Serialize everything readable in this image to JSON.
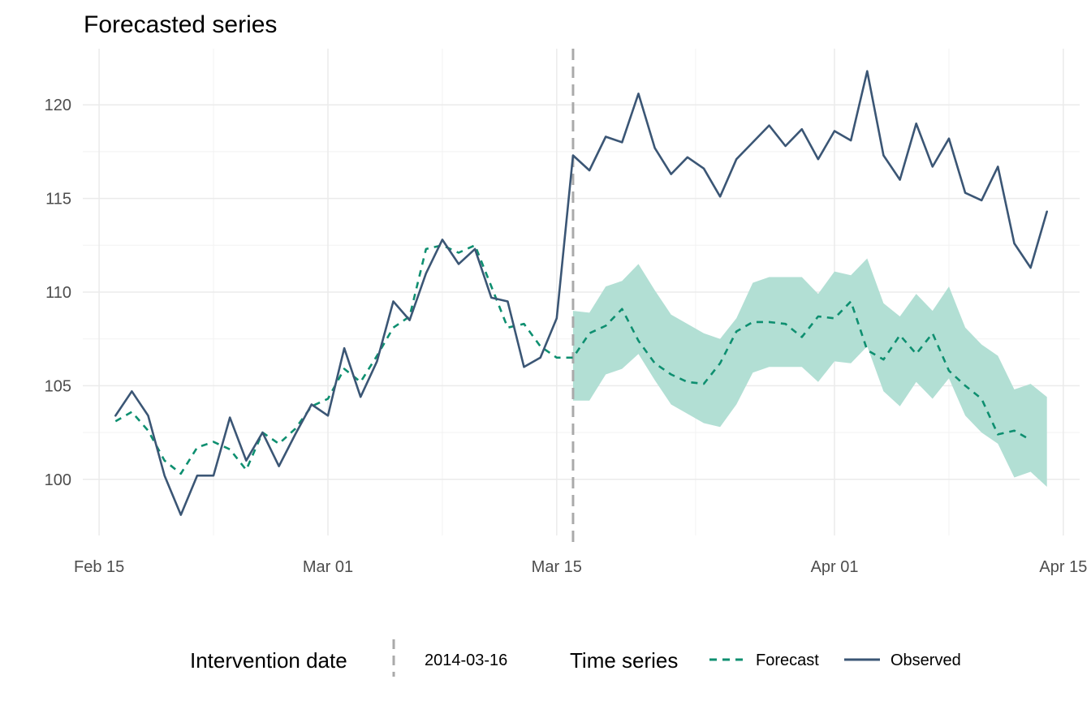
{
  "chart_data": {
    "type": "line",
    "title": "Forecasted series",
    "xlabel": "",
    "ylabel": "",
    "x_range": [
      "2014-02-14",
      "2014-04-16"
    ],
    "ylim": [
      97,
      123
    ],
    "x_ticks": [
      {
        "date": "2014-02-15",
        "label": "Feb 15"
      },
      {
        "date": "2014-03-01",
        "label": "Mar 01"
      },
      {
        "date": "2014-03-15",
        "label": "Mar 15"
      },
      {
        "date": "2014-04-01",
        "label": "Apr 01"
      },
      {
        "date": "2014-04-15",
        "label": "Apr 15"
      }
    ],
    "y_ticks": [
      100,
      105,
      110,
      115,
      120
    ],
    "grid": true,
    "intervention_date": "2014-03-16",
    "x": [
      "2014-02-16",
      "2014-02-17",
      "2014-02-18",
      "2014-02-19",
      "2014-02-20",
      "2014-02-21",
      "2014-02-22",
      "2014-02-23",
      "2014-02-24",
      "2014-02-25",
      "2014-02-26",
      "2014-02-27",
      "2014-02-28",
      "2014-03-01",
      "2014-03-02",
      "2014-03-03",
      "2014-03-04",
      "2014-03-05",
      "2014-03-06",
      "2014-03-07",
      "2014-03-08",
      "2014-03-09",
      "2014-03-10",
      "2014-03-11",
      "2014-03-12",
      "2014-03-13",
      "2014-03-14",
      "2014-03-15",
      "2014-03-16",
      "2014-03-17",
      "2014-03-18",
      "2014-03-19",
      "2014-03-20",
      "2014-03-21",
      "2014-03-22",
      "2014-03-23",
      "2014-03-24",
      "2014-03-25",
      "2014-03-26",
      "2014-03-27",
      "2014-03-28",
      "2014-03-29",
      "2014-03-30",
      "2014-03-31",
      "2014-04-01",
      "2014-04-02",
      "2014-04-03",
      "2014-04-04",
      "2014-04-05",
      "2014-04-06",
      "2014-04-07",
      "2014-04-08",
      "2014-04-09",
      "2014-04-10",
      "2014-04-11",
      "2014-04-12",
      "2014-04-13",
      "2014-04-14"
    ],
    "series": [
      {
        "name": "Forecast",
        "color": "#0e8f70",
        "style": "dashed",
        "values": [
          103.1,
          103.6,
          102.6,
          101.0,
          100.3,
          101.7,
          102.0,
          101.6,
          100.5,
          102.5,
          101.9,
          102.7,
          103.9,
          104.3,
          105.9,
          105.2,
          106.6,
          108.1,
          108.7,
          112.3,
          112.5,
          112.1,
          112.5,
          110.3,
          108.1,
          108.3,
          107.1,
          106.5,
          106.5,
          107.8,
          108.2,
          109.1,
          107.4,
          106.2,
          105.6,
          105.2,
          105.1,
          106.2,
          107.9,
          108.4,
          108.4,
          108.3,
          107.6,
          108.7,
          108.6,
          109.5,
          106.9,
          106.4,
          107.7,
          106.7,
          107.8,
          105.8,
          105.0,
          104.3,
          102.4,
          102.6,
          102.1,
          null
        ]
      },
      {
        "name": "Observed",
        "color": "#3b5675",
        "style": "solid",
        "values": [
          103.4,
          104.7,
          103.4,
          100.2,
          98.1,
          100.2,
          100.2,
          103.3,
          101.0,
          102.5,
          100.7,
          102.4,
          104.0,
          103.4,
          107.0,
          104.4,
          106.3,
          109.5,
          108.5,
          111.0,
          112.8,
          111.5,
          112.3,
          109.7,
          109.5,
          106.0,
          106.5,
          108.6,
          117.3,
          116.5,
          118.3,
          118.0,
          120.6,
          117.7,
          116.3,
          117.2,
          116.6,
          115.1,
          117.1,
          118.0,
          118.9,
          117.8,
          118.7,
          117.1,
          118.6,
          118.1,
          121.8,
          117.3,
          116.0,
          119.0,
          116.7,
          118.2,
          115.3,
          114.9,
          116.7,
          112.6,
          111.3,
          114.3
        ]
      }
    ],
    "interval": {
      "color": "#b2dfd4",
      "start": "2014-03-16",
      "lower": [
        104.2,
        104.2,
        105.6,
        105.9,
        106.7,
        105.3,
        104.0,
        103.5,
        103.0,
        102.8,
        104.0,
        105.7,
        106.0,
        106.0,
        106.0,
        105.2,
        106.3,
        106.2,
        107.1,
        104.7,
        103.9,
        105.2,
        104.3,
        105.4,
        103.4,
        102.5,
        101.9,
        100.1,
        100.4,
        99.6
      ],
      "upper": [
        109.0,
        108.9,
        110.3,
        110.6,
        111.5,
        110.1,
        108.8,
        108.3,
        107.8,
        107.5,
        108.6,
        110.5,
        110.8,
        110.8,
        110.8,
        109.9,
        111.1,
        110.9,
        111.8,
        109.4,
        108.7,
        109.9,
        109.0,
        110.3,
        108.1,
        107.2,
        106.6,
        104.8,
        105.1,
        104.4
      ]
    },
    "legend": {
      "position": "bottom",
      "groups": [
        {
          "title": "Intervention date",
          "entries": [
            "2014-03-16"
          ]
        },
        {
          "title": "Time series",
          "entries": [
            "Forecast",
            "Observed"
          ]
        }
      ]
    }
  }
}
